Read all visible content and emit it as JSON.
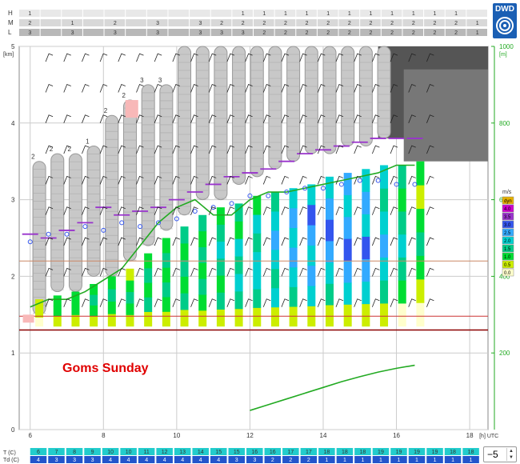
{
  "title": "Goms Sunday",
  "logo_text": "DWD",
  "axis": {
    "left_unit": "[km]",
    "right_unit": "[m]",
    "bottom_unit": "[h] UTC",
    "height_km_ticks": [
      "0",
      "1",
      "2",
      "3",
      "4",
      "5"
    ],
    "power_ticks": [
      "200",
      "400",
      "600",
      "800",
      "1000"
    ],
    "hour_ticks": [
      "6",
      "8",
      "10",
      "12",
      "14",
      "16",
      "18"
    ]
  },
  "cloud_rows": [
    {
      "label": "H",
      "values": [
        "1",
        "",
        "",
        "",
        "",
        "",
        "",
        "",
        "",
        "",
        "1",
        "1",
        "1",
        "1",
        "1",
        "1",
        "1",
        "1",
        "1",
        "1",
        "1",
        ""
      ]
    },
    {
      "label": "M",
      "values": [
        "2",
        "",
        "1",
        "",
        "2",
        "",
        "3",
        "",
        "3",
        "2",
        "2",
        "2",
        "2",
        "2",
        "2",
        "2",
        "2",
        "2",
        "2",
        "2",
        "2",
        "1"
      ]
    },
    {
      "label": "L",
      "values": [
        "3",
        "",
        "3",
        "",
        "3",
        "",
        "3",
        "",
        "3",
        "3",
        "3",
        "2",
        "2",
        "2",
        "2",
        "2",
        "2",
        "2",
        "2",
        "2",
        "2",
        "1"
      ]
    }
  ],
  "legend": {
    "title": "m/s",
    "entries": [
      {
        "label": "dyn",
        "color": "#e5b000"
      },
      {
        "label": "4.0",
        "color": "#cc00cc"
      },
      {
        "label": "3.5",
        "color": "#9933cc"
      },
      {
        "label": "3.0",
        "color": "#3355ee"
      },
      {
        "label": "2.5",
        "color": "#33aaff"
      },
      {
        "label": "2.0",
        "color": "#00d0d0"
      },
      {
        "label": "1.5",
        "color": "#00cc88"
      },
      {
        "label": "1.0",
        "color": "#00dd33"
      },
      {
        "label": "0.5",
        "color": "#ccee00"
      },
      {
        "label": "0.0",
        "color": "#ffffcc"
      }
    ]
  },
  "chart_data": {
    "type": "area",
    "x": [
      6,
      6.5,
      7,
      7.5,
      8,
      8.5,
      9,
      9.5,
      10,
      10.5,
      11,
      11.5,
      12,
      12.5,
      13,
      13.5,
      14,
      14.5,
      15,
      15.5,
      16,
      16.5
    ],
    "x_range": [
      5.7,
      18.5
    ],
    "y_range_km": [
      0,
      5
    ],
    "series": [
      {
        "values": [
          1.6,
          1.7,
          1.7,
          1.8,
          1.95,
          2.1,
          2.4,
          2.7,
          2.9,
          3.0,
          2.8,
          2.8,
          3.0,
          3.1,
          3.1,
          3.15,
          3.2,
          3.25,
          3.3,
          3.35,
          3.45,
          3.45
        ]
      },
      {
        "values": [
          2.55,
          2.5,
          2.6,
          2.7,
          2.9,
          2.8,
          2.85,
          2.9,
          3.0,
          3.1,
          3.2,
          3.3,
          3.35,
          3.4,
          3.5,
          3.6,
          3.65,
          3.7,
          3.75,
          3.8,
          3.8,
          3.8
        ]
      },
      {
        "values": [
          2.55,
          2.5,
          2.6,
          2.7,
          2.9,
          2.8,
          2.85,
          2.9,
          3.0,
          3.1,
          3.2,
          3.3,
          3.35,
          3.4,
          3.5,
          3.6,
          3.65,
          3.7,
          3.75,
          3.8,
          3.8,
          3.8
        ]
      },
      {
        "values": [
          2.45,
          2.55,
          2.55,
          2.65,
          2.6,
          2.7,
          2.65,
          2.7,
          2.75,
          2.85,
          2.9,
          2.95,
          3.05,
          3.05,
          3.1,
          3.15,
          3.15,
          3.2,
          3.25,
          3.25,
          3.2,
          3.2
        ]
      },
      {
        "values": [
          null,
          null,
          null,
          null,
          null,
          null,
          null,
          null,
          null,
          null,
          null,
          null,
          50,
          65,
          80,
          95,
          110,
          125,
          138,
          150,
          160,
          168
        ]
      }
    ],
    "thermal_columns": [
      {
        "top": 1.7,
        "levels": [
          "#ffffcc",
          "#ccee00",
          "#ccee00"
        ]
      },
      {
        "top": 1.75,
        "levels": [
          "#ccee00",
          "#00dd33",
          "#00dd33"
        ]
      },
      {
        "top": 1.8,
        "levels": [
          "#ccee00",
          "#00dd33",
          "#00dd33"
        ]
      },
      {
        "top": 1.9,
        "levels": [
          "#ccee00",
          "#00dd33",
          "#00cc88",
          "#00dd33"
        ]
      },
      {
        "top": 2.0,
        "levels": [
          "#ccee00",
          "#00dd33",
          "#00cc88",
          "#00dd33"
        ]
      },
      {
        "top": 2.1,
        "levels": [
          "#ccee00",
          "#00dd33",
          "#00cc88",
          "#00dd33",
          "#ccee00"
        ]
      },
      {
        "top": 2.3,
        "levels": [
          "#ccee00",
          "#00cc88",
          "#00dd33",
          "#00cc88",
          "#00dd33"
        ]
      },
      {
        "top": 2.5,
        "levels": [
          "#ccee00",
          "#00dd33",
          "#00cc88",
          "#00dd33",
          "#00cc88",
          "#00dd33"
        ]
      },
      {
        "top": 2.65,
        "levels": [
          "#ccee00",
          "#00cc88",
          "#00dd33",
          "#00cc88",
          "#00dd33",
          "#00cc88"
        ]
      },
      {
        "top": 2.8,
        "levels": [
          "#ccee00",
          "#00dd33",
          "#00cc88",
          "#00dd33",
          "#00cc88",
          "#00dd33",
          "#00cc88"
        ]
      },
      {
        "top": 2.9,
        "levels": [
          "#ccee00",
          "#00cc88",
          "#00dd33",
          "#00cc88",
          "#00d0d0",
          "#00cc88",
          "#00dd33"
        ]
      },
      {
        "top": 2.95,
        "levels": [
          "#ccee00",
          "#00cc88",
          "#00d0d0",
          "#00cc88",
          "#00d0d0",
          "#00dd33",
          "#00cc88"
        ]
      },
      {
        "top": 3.05,
        "levels": [
          "#ccee00",
          "#00cc88",
          "#00d0d0",
          "#00d0d0",
          "#00cc88",
          "#00d0d0",
          "#00dd33"
        ]
      },
      {
        "top": 3.1,
        "levels": [
          "#ccee00",
          "#00d0d0",
          "#00cc88",
          "#00d0d0",
          "#33aaff",
          "#00d0d0",
          "#00cc88"
        ]
      },
      {
        "top": 3.15,
        "levels": [
          "#ccee00",
          "#00cc88",
          "#00d0d0",
          "#33aaff",
          "#00d0d0",
          "#33aaff",
          "#00d0d0"
        ]
      },
      {
        "top": 3.2,
        "levels": [
          "#ccee00",
          "#00d0d0",
          "#33aaff",
          "#00d0d0",
          "#33aaff",
          "#3355ee",
          "#00d0d0"
        ]
      },
      {
        "top": 3.3,
        "levels": [
          "#ccee00",
          "#00cc88",
          "#00d0d0",
          "#33aaff",
          "#3355ee",
          "#33aaff",
          "#00d0d0"
        ]
      },
      {
        "top": 3.35,
        "levels": [
          "#ccee00",
          "#00d0d0",
          "#33aaff",
          "#3355ee",
          "#33aaff",
          "#00d0d0",
          "#33aaff"
        ]
      },
      {
        "top": 3.4,
        "levels": [
          "#ccee00",
          "#00d0d0",
          "#33aaff",
          "#3355ee",
          "#00d0d0",
          "#33aaff",
          "#00d0d0"
        ]
      },
      {
        "top": 3.45,
        "levels": [
          "#ccee00",
          "#00cc88",
          "#00d0d0",
          "#33aaff",
          "#00d0d0",
          "#00cc88",
          "#00d0d0"
        ]
      },
      {
        "top": 3.45,
        "levels": [
          "#ffffcc",
          "#00dd33",
          "#00cc88",
          "#00d0d0",
          "#00cc88",
          "#00dd33",
          "#00cc88"
        ]
      },
      {
        "top": 3.5,
        "levels": [
          "#ffffcc",
          "#ccee00",
          "#00dd33",
          "#00cc88",
          "#00dd33",
          "#ccee00",
          "#00dd33"
        ]
      }
    ],
    "cloud_columns": [
      {
        "top": 3.5,
        "bottom": 1.5,
        "label": "2"
      },
      {
        "top": 3.6,
        "bottom": 1.8,
        "label": "2"
      },
      {
        "top": 3.6,
        "bottom": 1.8,
        "label": "2"
      },
      {
        "top": 3.7,
        "bottom": 2.0,
        "label": "1"
      },
      {
        "top": 4.1,
        "bottom": 2.0,
        "label": "2"
      },
      {
        "top": 4.3,
        "bottom": 2.2,
        "label": "2"
      },
      {
        "top": 4.5,
        "bottom": 2.4,
        "label": "3"
      },
      {
        "top": 4.5,
        "bottom": 2.6,
        "label": "3"
      },
      {
        "top": 5.0,
        "bottom": 2.8,
        "label": ""
      },
      {
        "top": 5.0,
        "bottom": 3.0,
        "label": ""
      },
      {
        "top": 5.0,
        "bottom": 3.0,
        "label": ""
      },
      {
        "top": 5.0,
        "bottom": 3.2,
        "label": ""
      },
      {
        "top": 5.0,
        "bottom": 3.3,
        "label": ""
      },
      {
        "top": 5.0,
        "bottom": 3.4,
        "label": ""
      },
      {
        "top": 5.0,
        "bottom": 3.5,
        "label": ""
      },
      {
        "top": 5.0,
        "bottom": 3.6,
        "label": ""
      },
      {
        "top": 5.0,
        "bottom": 3.6,
        "label": ""
      },
      {
        "top": 5.0,
        "bottom": 3.7,
        "label": ""
      },
      {
        "top": 5.0,
        "bottom": 3.7,
        "label": ""
      },
      {
        "top": 5.0,
        "bottom": 3.8,
        "label": ""
      }
    ],
    "temperature": [
      "6",
      "7",
      "8",
      "9",
      "10",
      "10",
      "11",
      "12",
      "13",
      "14",
      "15",
      "15",
      "16",
      "16",
      "17",
      "17",
      "18",
      "18",
      "18",
      "19",
      "19",
      "19",
      "19",
      "18",
      "18"
    ],
    "dewpoint": [
      "4",
      "3",
      "3",
      "3",
      "4",
      "4",
      "4",
      "4",
      "4",
      "4",
      "4",
      "3",
      "3",
      "2",
      "2",
      "2",
      "1",
      "1",
      "1",
      "1",
      "1",
      "1",
      "1",
      "1",
      "1"
    ],
    "stepper_value": "−5",
    "t_label": "T  (C)",
    "td_label": "Td (C)"
  }
}
